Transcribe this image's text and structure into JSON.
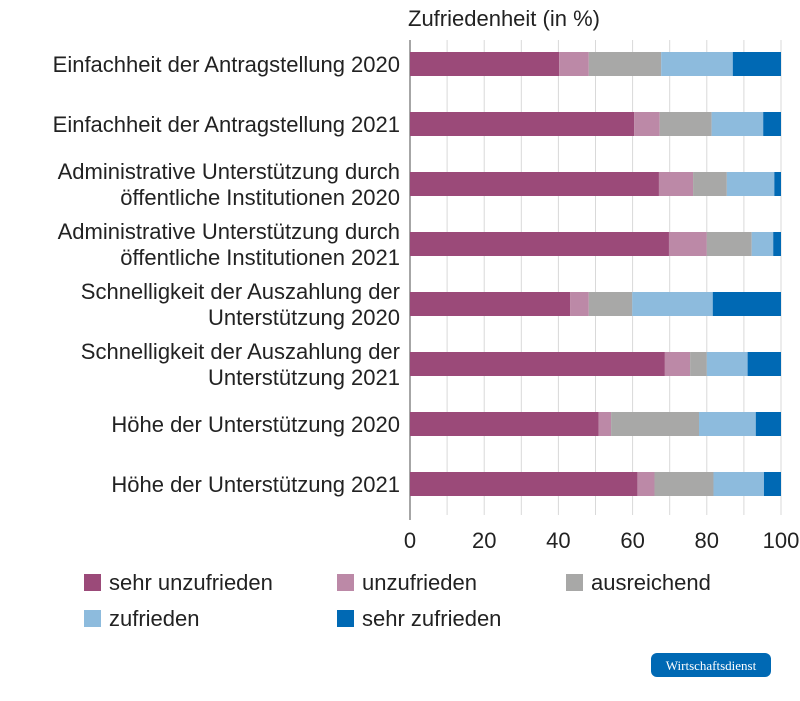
{
  "chart_data": {
    "type": "bar",
    "orientation": "horizontal",
    "stacked": true,
    "title": "Zufriedenheit (in %)",
    "categories": [
      [
        "Einfachheit der Antragstellung 2020"
      ],
      [
        "Einfachheit der Antragstellung 2021"
      ],
      [
        "Administrative Unterstützung durch",
        "öffentliche Institutionen 2020"
      ],
      [
        "Administrative Unterstützung durch",
        "öffentliche Institutionen 2021"
      ],
      [
        "Schnelligkeit der Auszahlung der",
        "Unterstützung 2020"
      ],
      [
        "Schnelligkeit der Auszahlung der",
        "Unterstützung 2021"
      ],
      [
        "Höhe der Unterstützung 2020"
      ],
      [
        "Höhe der Unterstützung 2021"
      ]
    ],
    "series": [
      {
        "name": "sehr unzufrieden",
        "color": "#9b4a79",
        "values": [
          40.2,
          60.4,
          67.1,
          69.8,
          43.2,
          68.7,
          50.8,
          61.3
        ]
      },
      {
        "name": "unzufrieden",
        "color": "#bc89a7",
        "values": [
          8.0,
          6.9,
          9.2,
          10.2,
          5.0,
          6.8,
          3.4,
          4.6
        ]
      },
      {
        "name": "ausreichend",
        "color": "#a8a8a7",
        "values": [
          19.5,
          14.0,
          9.1,
          12.1,
          11.7,
          4.5,
          23.7,
          15.9
        ]
      },
      {
        "name": "zufrieden",
        "color": "#8dbbdd",
        "values": [
          19.3,
          13.9,
          12.8,
          5.8,
          21.7,
          11.0,
          15.3,
          13.6
        ]
      },
      {
        "name": "sehr zufrieden",
        "color": "#0069b4",
        "values": [
          13.0,
          4.8,
          1.8,
          2.1,
          18.4,
          9.0,
          6.8,
          4.6
        ]
      }
    ],
    "xlim": [
      0,
      100
    ],
    "xticks": [
      "0",
      "20",
      "40",
      "60",
      "80",
      "100"
    ],
    "grid": true,
    "legend_placement": "bottom"
  },
  "logo": {
    "text": "Wirtschaftsdienst",
    "color": "#0069b4"
  }
}
